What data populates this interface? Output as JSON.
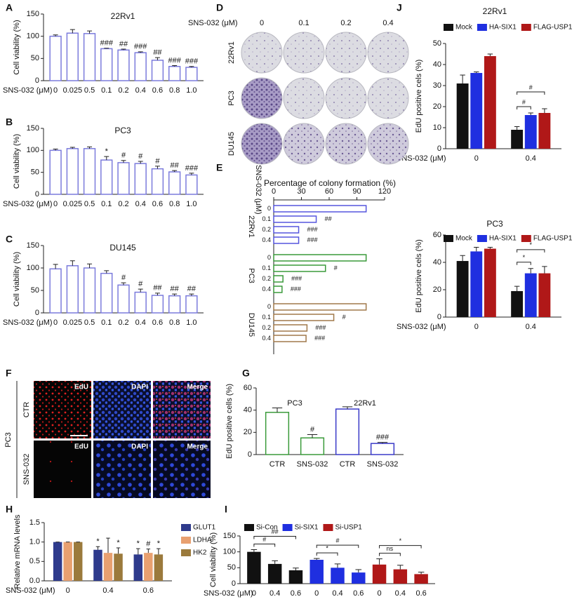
{
  "chart_data": [
    {
      "type": "bar",
      "panel": "A",
      "title": "22Rv1",
      "xlabel": "SNS-032 (μM)",
      "ylabel": "Cell viability (%)",
      "categories": [
        "0",
        "0.025",
        "0.5",
        "0.1",
        "0.2",
        "0.4",
        "0.6",
        "0.8",
        "1.0"
      ],
      "series": [
        {
          "color": "#7b7bdc",
          "values": [
            100,
            107,
            106,
            72,
            69,
            63,
            46,
            32,
            30
          ],
          "errors": [
            3,
            8,
            6,
            1,
            2,
            2,
            6,
            2,
            2
          ],
          "annotations": [
            null,
            null,
            null,
            "###",
            "##",
            "###",
            "##",
            "###",
            "###"
          ]
        }
      ],
      "bar_style": "outline",
      "ylim": [
        0,
        150
      ],
      "yticks": [
        0,
        50,
        100,
        150
      ]
    },
    {
      "type": "bar",
      "panel": "B",
      "title": "PC3",
      "xlabel": "SNS-032 (μM)",
      "ylabel": "Cell viability (%)",
      "categories": [
        "0",
        "0.025",
        "0.5",
        "0.1",
        "0.2",
        "0.4",
        "0.6",
        "0.8",
        "1.0"
      ],
      "series": [
        {
          "color": "#7b7bdc",
          "values": [
            100,
            104,
            104,
            78,
            72,
            70,
            58,
            51,
            44
          ],
          "errors": [
            3,
            3,
            4,
            8,
            5,
            5,
            6,
            3,
            4
          ],
          "annotations": [
            null,
            null,
            null,
            "*",
            "#",
            "#",
            "#",
            "##",
            "###"
          ]
        }
      ],
      "bar_style": "outline",
      "ylim": [
        0,
        150
      ],
      "yticks": [
        0,
        50,
        100,
        150
      ]
    },
    {
      "type": "bar",
      "panel": "C",
      "title": "DU145",
      "xlabel": "SNS-032 (μM)",
      "ylabel": "Cell viability (%)",
      "categories": [
        "0",
        "0.025",
        "0.5",
        "0.1",
        "0.2",
        "0.4",
        "0.6",
        "0.8",
        "1.0"
      ],
      "series": [
        {
          "color": "#7b7bdc",
          "values": [
            98,
            105,
            100,
            88,
            62,
            46,
            39,
            38,
            38
          ],
          "errors": [
            10,
            11,
            9,
            6,
            5,
            7,
            5,
            4,
            4
          ],
          "annotations": [
            null,
            null,
            null,
            null,
            "#",
            "#",
            "##",
            "##",
            "##"
          ]
        }
      ],
      "bar_style": "outline",
      "ylim": [
        0,
        150
      ],
      "yticks": [
        0,
        50,
        100,
        150
      ]
    },
    {
      "type": "hbar",
      "panel": "E",
      "title": "Percentage of colony formation (%)",
      "ylabel": "SNS-032 (μM)",
      "xlim": [
        0,
        120
      ],
      "xticks": [
        0,
        30,
        60,
        90,
        120
      ],
      "bar_style": "outline",
      "groups": [
        {
          "name": "22Rv1",
          "color": "#5555dd",
          "categories": [
            "0",
            "0.1",
            "0.2",
            "0.4"
          ],
          "values": [
            100,
            46,
            27,
            27
          ],
          "annotations": [
            null,
            "##",
            "###",
            "###"
          ]
        },
        {
          "name": "PC3",
          "color": "#3a9a3a",
          "categories": [
            "0",
            "0.1",
            "0.2",
            "0.4"
          ],
          "values": [
            100,
            56,
            10,
            9
          ],
          "annotations": [
            null,
            "#",
            "###",
            "###"
          ]
        },
        {
          "name": "DU145",
          "color": "#a0784a",
          "categories": [
            "0",
            "0.1",
            "0.2",
            "0.4"
          ],
          "values": [
            100,
            65,
            36,
            35
          ],
          "annotations": [
            null,
            "#",
            "###",
            "###"
          ]
        }
      ]
    },
    {
      "type": "bar",
      "panel": "G",
      "ylabel": "EdU positive cells (%)",
      "categories": [
        "CTR",
        "SNS-032",
        "CTR",
        "SNS-032"
      ],
      "series": [
        {
          "name": "PC3",
          "color": "#3a9a3a",
          "values": [
            38,
            15,
            null,
            null
          ],
          "errors": [
            4,
            3,
            null,
            null
          ],
          "annotations": [
            null,
            "#",
            null,
            null
          ]
        },
        {
          "name": "22Rv1",
          "color": "#3a3ac8",
          "values": [
            null,
            null,
            41,
            10
          ],
          "errors": [
            null,
            null,
            2,
            1
          ],
          "annotations": [
            null,
            null,
            null,
            "###"
          ]
        }
      ],
      "bar_style": "outline",
      "legend": "above-groups",
      "ylim": [
        0,
        60
      ],
      "yticks": [
        0,
        20,
        40,
        60
      ]
    },
    {
      "type": "bar",
      "panel": "H",
      "xlabel": "SNS-032 (μM)",
      "ylabel": "Relative mRNA levels",
      "categories": [
        "0",
        "0.4",
        "0.6"
      ],
      "series": [
        {
          "name": "GLUT1",
          "color": "#2e3a8c",
          "values": [
            1,
            0.8,
            0.68
          ],
          "errors": [
            0,
            0.08,
            0.15
          ],
          "annotations": [
            null,
            "*",
            "*"
          ]
        },
        {
          "name": "LDHA",
          "color": "#e8a070",
          "values": [
            1,
            0.72,
            0.72
          ],
          "errors": [
            0,
            0.38,
            0.1
          ],
          "annotations": [
            null,
            null,
            "#"
          ]
        },
        {
          "name": "HK2",
          "color": "#9b7a3c",
          "values": [
            1,
            0.7,
            0.68
          ],
          "errors": [
            0,
            0.15,
            0.15
          ],
          "annotations": [
            null,
            "*",
            "*"
          ]
        }
      ],
      "bar_style": "solid",
      "legend": "right",
      "ylim": [
        0,
        1.5
      ],
      "yticks": [
        {
          "value": 0,
          "label": "0.0"
        },
        0.5,
        {
          "value": 1,
          "label": "1.0"
        },
        1.5
      ]
    },
    {
      "type": "bar",
      "panel": "I",
      "xlabel": "SNS-032 (μM)",
      "ylabel": "Cell viability (%)",
      "categories": [
        "0",
        "0.4",
        "0.6",
        "0",
        "0.4",
        "0.6",
        "0",
        "0.4",
        "0.6"
      ],
      "series": [
        {
          "name": "Si-Con",
          "color": "#111111",
          "values": [
            100,
            62,
            42,
            null,
            null,
            null,
            null,
            null,
            null
          ],
          "errors": [
            7,
            10,
            7,
            null,
            null,
            null,
            null,
            null,
            null
          ],
          "comparisons": [
            "#",
            "##"
          ]
        },
        {
          "name": "Si-SIX1",
          "color": "#1f2fe0",
          "values": [
            null,
            null,
            null,
            75,
            50,
            35,
            null,
            null,
            null
          ],
          "errors": [
            null,
            null,
            null,
            4,
            12,
            9,
            null,
            null,
            null
          ],
          "comparisons": [
            "*",
            "#"
          ]
        },
        {
          "name": "Si-USP1",
          "color": "#b01818",
          "values": [
            null,
            null,
            null,
            null,
            null,
            null,
            60,
            45,
            30
          ],
          "errors": [
            null,
            null,
            null,
            null,
            null,
            null,
            18,
            13,
            6
          ],
          "comparisons": [
            "ns",
            "*"
          ]
        }
      ],
      "bar_style": "solid",
      "legend": "top",
      "ylim": [
        0,
        150
      ],
      "yticks": [
        0,
        50,
        100,
        150
      ]
    },
    {
      "type": "bar",
      "panel": "J",
      "title": "22Rv1",
      "xlabel": "SNS-032 (μM)",
      "ylabel": "EdU positive cels (%)",
      "categories": [
        "0",
        "0.4"
      ],
      "series": [
        {
          "name": "Mock",
          "color": "#111111",
          "values": [
            31,
            9
          ],
          "errors": [
            4,
            1.5
          ]
        },
        {
          "name": "HA-SIX1",
          "color": "#1f2fe0",
          "values": [
            36,
            16
          ],
          "errors": [
            0.5,
            1
          ]
        },
        {
          "name": "FLAG-USP1",
          "color": "#b01818",
          "values": [
            44,
            17
          ],
          "errors": [
            1,
            2
          ]
        }
      ],
      "category_comparisons": [
        null,
        [
          "#",
          "#"
        ]
      ],
      "bar_style": "solid",
      "legend": "top",
      "ylim": [
        0,
        50
      ],
      "yticks": [
        0,
        10,
        20,
        30,
        40,
        50
      ]
    },
    {
      "type": "bar",
      "title": "PC3",
      "xlabel": "SNS-032 (μM)",
      "ylabel": "EdU positive cels (%)",
      "categories": [
        "0",
        "0.4"
      ],
      "series": [
        {
          "name": "Mock",
          "color": "#111111",
          "values": [
            41,
            19
          ],
          "errors": [
            4,
            3.5
          ]
        },
        {
          "name": "HA-SIX1",
          "color": "#1f2fe0",
          "values": [
            48,
            32
          ],
          "errors": [
            3,
            3.5
          ]
        },
        {
          "name": "FLAG-USP1",
          "color": "#b01818",
          "values": [
            50,
            32
          ],
          "errors": [
            1,
            5
          ]
        }
      ],
      "category_comparisons": [
        null,
        [
          "*",
          "*"
        ]
      ],
      "bar_style": "solid",
      "legend": "top",
      "ylim": [
        0,
        60
      ],
      "yticks": [
        0,
        20,
        40,
        60
      ]
    }
  ],
  "panel_d": {
    "panel": "D",
    "dose_label": "SNS-032 (μM)",
    "doses": [
      "0",
      "0.1",
      "0.2",
      "0.4"
    ],
    "cell_lines": [
      "22Rv1",
      "PC3",
      "DU145"
    ]
  },
  "panel_f": {
    "panel": "F",
    "cell_line": "PC3",
    "rows": [
      "CTR",
      "SNS-032"
    ],
    "channels": [
      [
        "EdU",
        "DAPI",
        "Merge"
      ],
      [
        "EdU",
        "DAPI",
        "Merge"
      ]
    ]
  }
}
